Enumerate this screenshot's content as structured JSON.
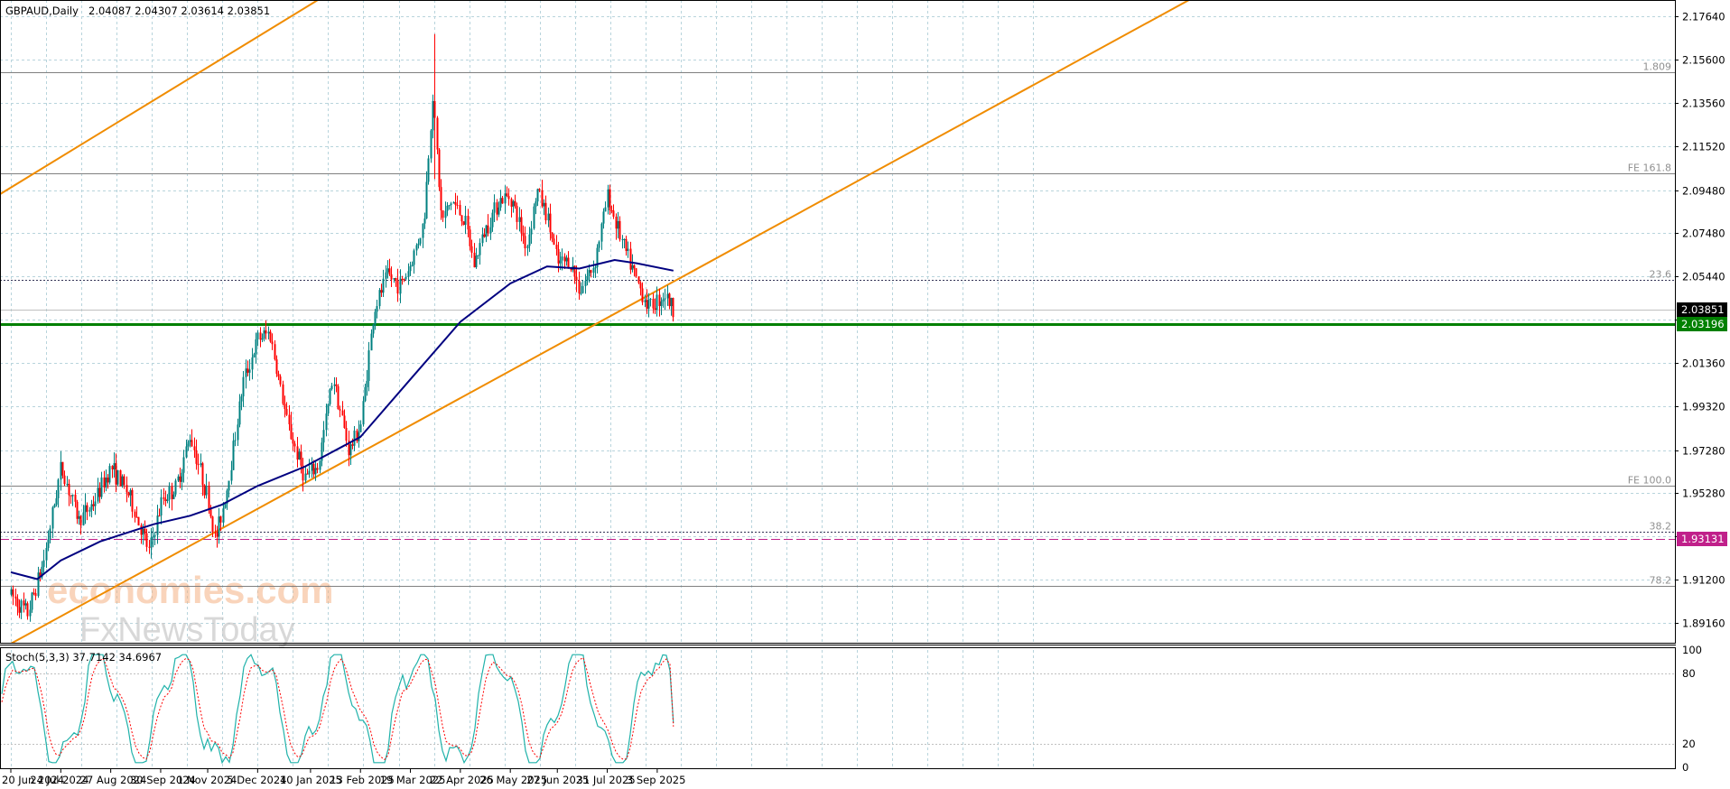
{
  "header": {
    "symbol": "GBPAUD,Daily",
    "ohlc": "2.04087 2.04307 2.03614 2.03851"
  },
  "watermark": {
    "line1": "economies.com",
    "line2": "FxNewsToday"
  },
  "price_axis": {
    "ticks": [
      "2.17640",
      "2.15600",
      "2.13560",
      "2.11520",
      "2.09480",
      "2.07480",
      "2.05440",
      "2.03400",
      "2.01360",
      "1.99320",
      "1.97280",
      "1.95280",
      "1.93240",
      "1.91200",
      "1.89160"
    ],
    "current_price_label": "2.03851",
    "support_label": "2.03196",
    "pink_level_label": "1.93131"
  },
  "levels": [
    {
      "name": "level-1809",
      "label": "1.809",
      "price": 2.1501,
      "style": "solid",
      "color": "#808080"
    },
    {
      "name": "level-fe-161-8",
      "label": "FE 161.8",
      "price": 2.1027,
      "style": "solid",
      "color": "#808080"
    },
    {
      "name": "level-23-6",
      "label": "23.6",
      "price": 2.0525,
      "style": "dotted",
      "color": "#333355"
    },
    {
      "name": "level-fe-100",
      "label": "FE 100.0",
      "price": 1.956,
      "style": "solid",
      "color": "#808080"
    },
    {
      "name": "level-38-2",
      "label": "38.2",
      "price": 1.9345,
      "style": "dotted",
      "color": "#333355"
    },
    {
      "name": "level-78-2",
      "label": "78.2",
      "price": 1.909,
      "style": "solid",
      "color": "#808080"
    }
  ],
  "support_line": {
    "price": 2.03196,
    "color": "#008000"
  },
  "pink_line": {
    "price": 1.93131,
    "color": "#c0208a"
  },
  "trend_lines": {
    "color": "#f08c00",
    "upper": [
      {
        "date": "2024-06-20",
        "price": 2.096
      },
      {
        "date": "2025-02-22",
        "price": 2.2
      }
    ],
    "lower": [
      {
        "date": "2024-06-20",
        "price": 1.882
      },
      {
        "date": "2025-12-31",
        "price": 2.0925
      }
    ]
  },
  "x_axis": {
    "labels": [
      "20 Jun 2024",
      "24 Jul 2024",
      "27 Aug 2024",
      "30 Sep 2024",
      "1 Nov 2024",
      "5 Dec 2024",
      "10 Jan 2025",
      "13 Feb 2025",
      "19 Mar 2025",
      "22 Apr 2025",
      "26 May 2025",
      "27 Jun 2025",
      "31 Jul 2025",
      "3 Sep 2025"
    ]
  },
  "chart_data": {
    "type": "candlestick",
    "title": "GBPAUD,Daily",
    "ylim": [
      1.882,
      2.184
    ],
    "up_color": "#008080",
    "down_color": "#ff0000",
    "ma_color": "#000080",
    "anchors": [
      {
        "date": "2024-06-20",
        "price": 1.905
      },
      {
        "date": "2024-07-01",
        "price": 1.896
      },
      {
        "date": "2024-07-12",
        "price": 1.92
      },
      {
        "date": "2024-07-24",
        "price": 1.965
      },
      {
        "date": "2024-08-05",
        "price": 1.94
      },
      {
        "date": "2024-08-15",
        "price": 1.948
      },
      {
        "date": "2024-08-27",
        "price": 1.965
      },
      {
        "date": "2024-09-08",
        "price": 1.952
      },
      {
        "date": "2024-09-22",
        "price": 1.925
      },
      {
        "date": "2024-10-01",
        "price": 1.95
      },
      {
        "date": "2024-10-10",
        "price": 1.955
      },
      {
        "date": "2024-10-20",
        "price": 1.98
      },
      {
        "date": "2024-11-01",
        "price": 1.95
      },
      {
        "date": "2024-11-06",
        "price": 1.93
      },
      {
        "date": "2024-11-14",
        "price": 1.955
      },
      {
        "date": "2024-11-25",
        "price": 2.005
      },
      {
        "date": "2024-12-05",
        "price": 2.025
      },
      {
        "date": "2024-12-13",
        "price": 2.028
      },
      {
        "date": "2024-12-25",
        "price": 1.985
      },
      {
        "date": "2025-01-06",
        "price": 1.96
      },
      {
        "date": "2025-01-15",
        "price": 1.965
      },
      {
        "date": "2025-01-25",
        "price": 2.008
      },
      {
        "date": "2025-02-05",
        "price": 1.972
      },
      {
        "date": "2025-02-13",
        "price": 1.985
      },
      {
        "date": "2025-02-22",
        "price": 2.038
      },
      {
        "date": "2025-03-03",
        "price": 2.055
      },
      {
        "date": "2025-03-12",
        "price": 2.05
      },
      {
        "date": "2025-03-19",
        "price": 2.06
      },
      {
        "date": "2025-03-28",
        "price": 2.08
      },
      {
        "date": "2025-04-03",
        "price": 2.14
      },
      {
        "date": "2025-04-09",
        "price": 2.08
      },
      {
        "date": "2025-04-16",
        "price": 2.09
      },
      {
        "date": "2025-04-25",
        "price": 2.08
      },
      {
        "date": "2025-05-01",
        "price": 2.06
      },
      {
        "date": "2025-05-08",
        "price": 2.075
      },
      {
        "date": "2025-05-18",
        "price": 2.09
      },
      {
        "date": "2025-05-26",
        "price": 2.092
      },
      {
        "date": "2025-06-06",
        "price": 2.068
      },
      {
        "date": "2025-06-13",
        "price": 2.095
      },
      {
        "date": "2025-06-20",
        "price": 2.082
      },
      {
        "date": "2025-06-27",
        "price": 2.06
      },
      {
        "date": "2025-07-05",
        "price": 2.062
      },
      {
        "date": "2025-07-12",
        "price": 2.048
      },
      {
        "date": "2025-07-22",
        "price": 2.06
      },
      {
        "date": "2025-07-31",
        "price": 2.092
      },
      {
        "date": "2025-08-10",
        "price": 2.07
      },
      {
        "date": "2025-08-20",
        "price": 2.052
      },
      {
        "date": "2025-08-28",
        "price": 2.04
      },
      {
        "date": "2025-09-08",
        "price": 2.046
      },
      {
        "date": "2025-09-14",
        "price": 2.0385
      }
    ],
    "ma_points": [
      {
        "date": "2024-06-20",
        "price": 1.9155
      },
      {
        "date": "2024-07-08",
        "price": 1.9123
      },
      {
        "date": "2024-07-24",
        "price": 1.921
      },
      {
        "date": "2024-08-20",
        "price": 1.93
      },
      {
        "date": "2024-09-25",
        "price": 1.938
      },
      {
        "date": "2024-10-20",
        "price": 1.942
      },
      {
        "date": "2024-11-10",
        "price": 1.947
      },
      {
        "date": "2024-12-05",
        "price": 1.956
      },
      {
        "date": "2025-01-06",
        "price": 1.965
      },
      {
        "date": "2025-02-13",
        "price": 1.979
      },
      {
        "date": "2025-03-19",
        "price": 2.006
      },
      {
        "date": "2025-04-22",
        "price": 2.033
      },
      {
        "date": "2025-05-26",
        "price": 2.051
      },
      {
        "date": "2025-06-20",
        "price": 2.059
      },
      {
        "date": "2025-07-12",
        "price": 2.058
      },
      {
        "date": "2025-08-05",
        "price": 2.062
      },
      {
        "date": "2025-08-20",
        "price": 2.0605
      },
      {
        "date": "2025-09-14",
        "price": 2.057
      }
    ],
    "stochastic": {
      "label": "Stoch(5,3,3) 37.7142 34.6967",
      "main_value": 37.7142,
      "signal_value": 34.6967,
      "levels": [
        "100",
        "80",
        "20",
        "0"
      ],
      "main_color": "#20b2aa",
      "signal_color": "#ff0000"
    }
  }
}
